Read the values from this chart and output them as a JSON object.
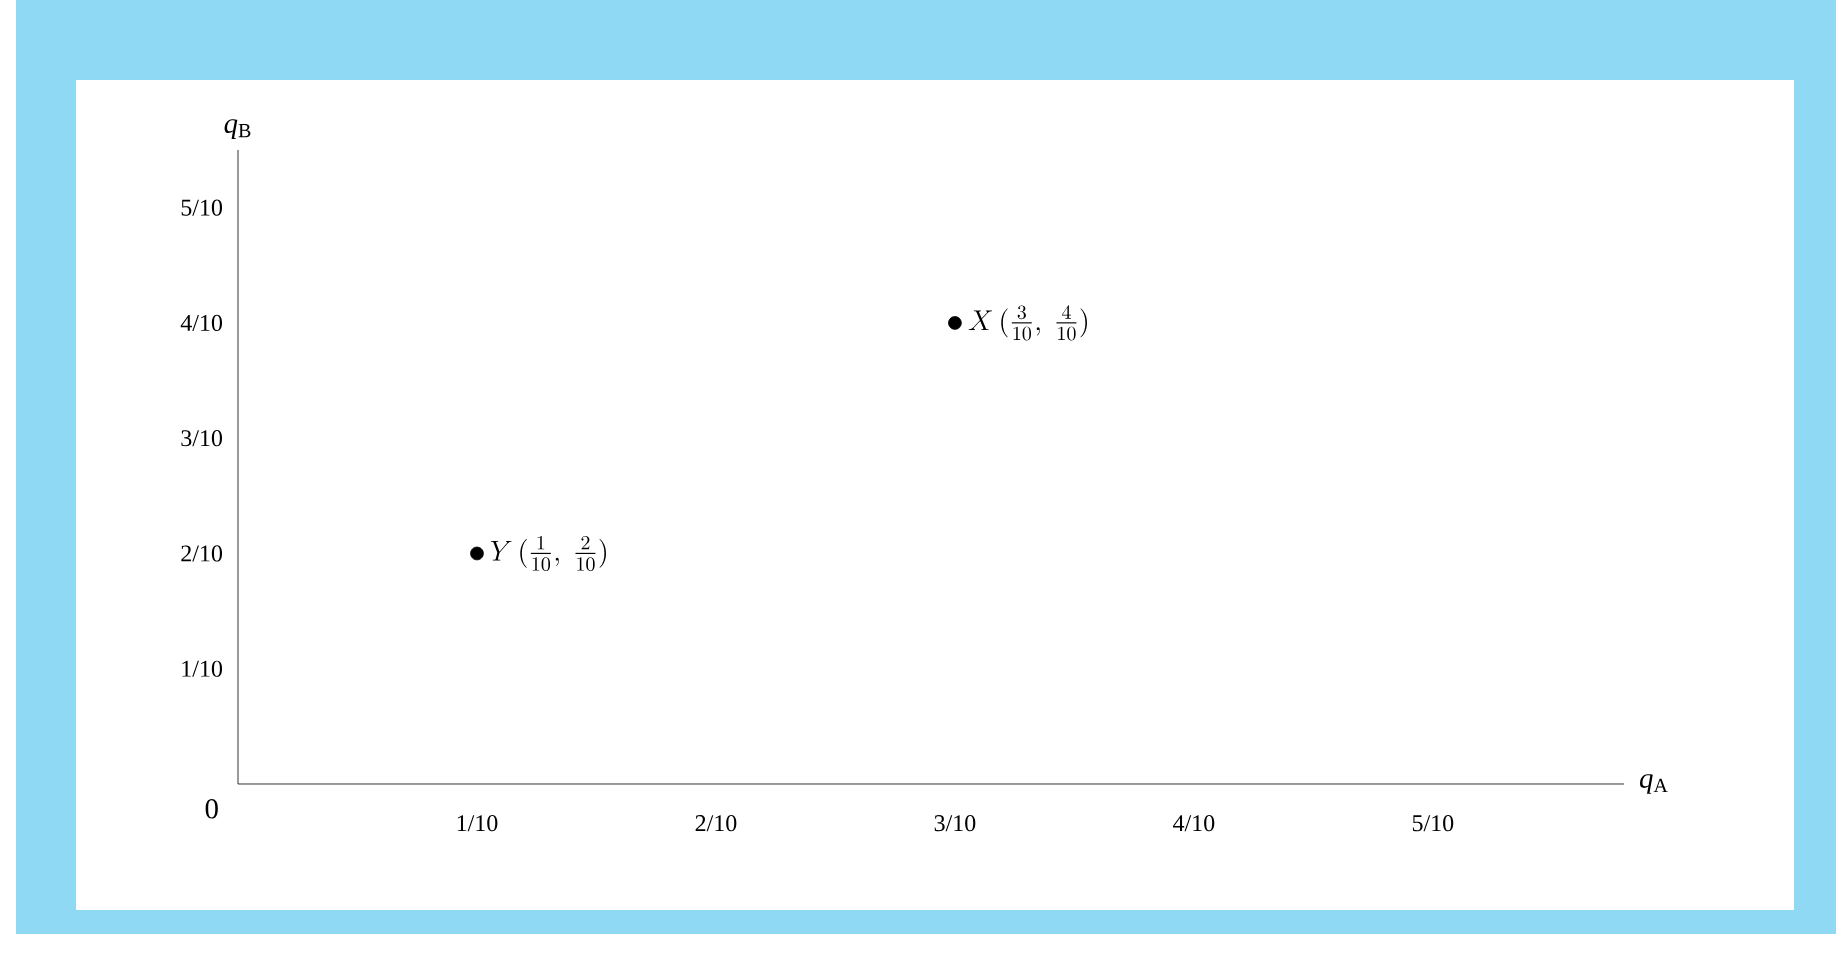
{
  "chart_data": {
    "type": "scatter",
    "xlabel": "*q*$_{A}$",
    "ylabel": "*q*$_{B}$",
    "x": [
      0.3,
      0.1
    ],
    "values": [
      0.4,
      0.2
    ],
    "color": "#000000",
    "marker": "circle",
    "xlim": [
      0,
      0.58
    ],
    "ylim": [
      0,
      0.55
    ],
    "xticks": [
      {
        "value": 0.1,
        "label": "1/10"
      },
      {
        "value": 0.2,
        "label": "2/10"
      },
      {
        "value": 0.3,
        "label": "3/10"
      },
      {
        "value": 0.4,
        "label": "4/10"
      },
      {
        "value": 0.5,
        "label": "5/10"
      }
    ],
    "yticks": [
      {
        "value": 0.1,
        "label": "1/10"
      },
      {
        "value": 0.2,
        "label": "2/10"
      },
      {
        "value": 0.3,
        "label": "3/10"
      },
      {
        "value": 0.4,
        "label": "4/10"
      },
      {
        "value": 0.5,
        "label": "5/10"
      }
    ],
    "annotations": [
      {
        "text": "X\\,(\\tfrac{3}{10},\\ \\tfrac{4}{10})",
        "x": 0.3,
        "y": 0.4
      },
      {
        "text": "Y\\,(\\tfrac{1}{10},\\ \\tfrac{2}{10})",
        "x": 0.1,
        "y": 0.2
      },
      "0"
    ]
  }
}
